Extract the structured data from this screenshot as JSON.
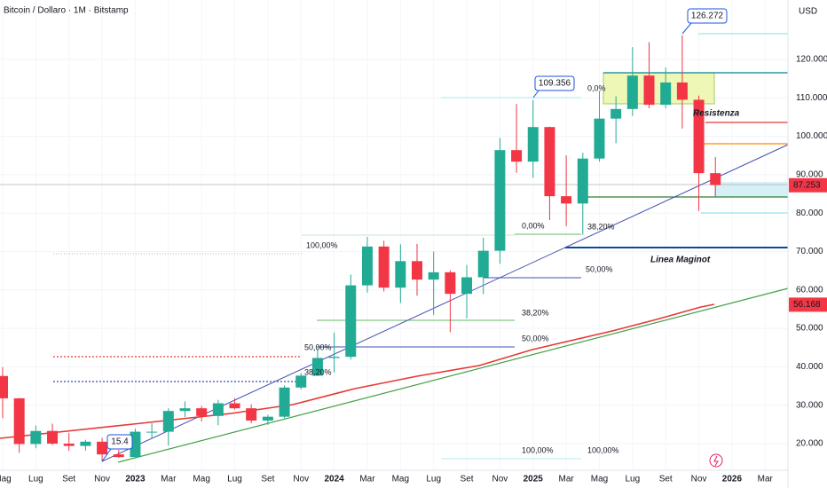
{
  "chart_data": {
    "type": "candlestick",
    "title": "Bitcoin / Dollaro · 1M · Bitstamp",
    "currency": "USD",
    "categories": [
      "Mag",
      null,
      "Lug",
      null,
      "Set",
      null,
      "Nov",
      null,
      "2023",
      null,
      "Mar",
      null,
      "Mag",
      null,
      "Lug",
      null,
      "Set",
      null,
      "Nov",
      null,
      "2024",
      null,
      "Mar",
      null,
      "Mag",
      null,
      "Lug",
      null,
      "Set",
      null,
      "Nov",
      null,
      "2025",
      null,
      "Mar",
      null,
      "Mag",
      null,
      "Lug",
      null,
      "Set",
      null,
      "Nov",
      null,
      "2026",
      null,
      "Mar"
    ],
    "open": [
      37600,
      31800,
      19900,
      23300,
      20000,
      19400,
      20500,
      17200,
      16500,
      23100,
      23100,
      28500,
      29200,
      27200,
      30500,
      29200,
      26000,
      27000,
      34600,
      37700,
      42300,
      42600,
      61200,
      71300,
      60600,
      67500,
      62700,
      64600,
      59000,
      63300,
      70200,
      96400,
      93400,
      102400,
      84400,
      82500,
      94200,
      104600,
      107100,
      115800,
      108200,
      114000,
      109500,
      90400,
      null,
      null,
      null
    ],
    "high": [
      39900,
      31900,
      24700,
      25200,
      22800,
      21000,
      21500,
      18400,
      23900,
      25300,
      29200,
      31000,
      29800,
      31400,
      31800,
      30200,
      27500,
      35200,
      38400,
      44700,
      48900,
      64000,
      73800,
      72800,
      71900,
      72000,
      70000,
      65100,
      66500,
      73600,
      99600,
      108400,
      109400,
      102500,
      95000,
      95700,
      111800,
      110400,
      123200,
      124500,
      117900,
      126300,
      110600,
      94600,
      null,
      null,
      null
    ],
    "low": [
      26600,
      17600,
      18800,
      19600,
      18100,
      18200,
      15500,
      16300,
      16500,
      21400,
      19500,
      26900,
      25800,
      24800,
      28900,
      25300,
      24900,
      26600,
      34100,
      37600,
      38500,
      41900,
      59300,
      59600,
      56600,
      58500,
      53500,
      49000,
      52600,
      58900,
      66800,
      90500,
      89200,
      78200,
      76600,
      74400,
      93400,
      98200,
      105300,
      107300,
      107300,
      102000,
      80600,
      84400,
      null,
      null,
      null
    ],
    "close": [
      31800,
      19900,
      23300,
      20000,
      19400,
      20500,
      17200,
      16500,
      23100,
      23100,
      28500,
      29200,
      27200,
      30500,
      29200,
      26000,
      27000,
      34600,
      37700,
      42300,
      42600,
      61200,
      71300,
      60600,
      67500,
      62700,
      64600,
      59000,
      63300,
      70200,
      96400,
      93400,
      102400,
      84400,
      82500,
      94200,
      104600,
      107100,
      115800,
      108200,
      114000,
      109500,
      90400,
      87300,
      null,
      null,
      null
    ],
    "up_color": "#22ab94",
    "down_color": "#f23645",
    "ylim": [
      13070,
      135470
    ],
    "yticks": [
      {
        "value": 20000,
        "label": "20.000"
      },
      {
        "value": 30000,
        "label": "30.000"
      },
      {
        "value": 40000,
        "label": "40.000"
      },
      {
        "value": 50000,
        "label": "50.000"
      },
      {
        "value": 60000,
        "label": "60.000"
      },
      {
        "value": 70000,
        "label": "70.000"
      },
      {
        "value": 80000,
        "label": "80.000"
      },
      {
        "value": 90000,
        "label": "90.000"
      },
      {
        "value": 100000,
        "label": "100.000"
      },
      {
        "value": 110000,
        "label": "110.000"
      },
      {
        "value": 120000,
        "label": "120.000"
      }
    ],
    "grid": true,
    "price_labels": [
      {
        "value": 87253,
        "label": "87.253",
        "color": "#f23645"
      },
      {
        "value": 56168,
        "label": "56.168",
        "color": "#f23645"
      }
    ],
    "callouts": [
      "126.272",
      "109.356",
      "15.4"
    ],
    "annotations": [
      "Resistenza",
      "Linea Maginot"
    ],
    "fib_labels": [
      "100,00%",
      "50,00%",
      "38,20%",
      "0,00%",
      "38,20%",
      "50,00%",
      "38,20%",
      "50,00%",
      "0,0%",
      "100,00%",
      "100,00%"
    ]
  }
}
